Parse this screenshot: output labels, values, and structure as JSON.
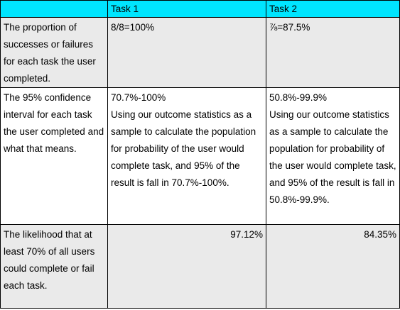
{
  "table": {
    "headers": [
      "",
      "Task 1",
      "Task 2"
    ],
    "rows": [
      {
        "label": "The proportion of successes or failures for each task the user completed.",
        "task1": "8/8=100%",
        "task2": "⅞=87.5%"
      },
      {
        "label": "The 95% confidence interval for each task the user completed and what that means.",
        "task1_range": "70.7%-100%",
        "task1_note": "Using our outcome statistics as a sample to calculate the population for probability of the user would complete task, and 95% of the result is fall in 70.7%-100%.",
        "task2_range": "50.8%-99.9%",
        "task2_note": "Using our outcome statistics as a sample to calculate the population for probability of the user would complete task, and 95% of the result is fall in 50.8%-99.9%."
      },
      {
        "label": "The likelihood that at least 70% of all users could complete or fail each task.",
        "task1": "97.12%",
        "task2": "84.35%"
      }
    ]
  },
  "colors": {
    "header_bg": "#00e5ff",
    "shaded_row_bg": "#eaeaea",
    "border": "#000000"
  }
}
